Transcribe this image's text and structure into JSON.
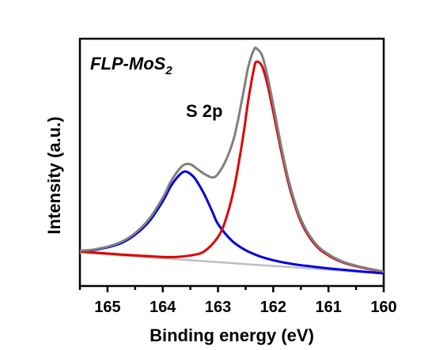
{
  "chart_data": {
    "type": "line",
    "xlabel": "Binding energy (eV)",
    "ylabel": "Intensity (a.u.)",
    "xlim": [
      165.5,
      160
    ],
    "x_reversed": true,
    "y_ticks_shown": false,
    "grid": false,
    "x_ticks": [
      165,
      164,
      163,
      162,
      161,
      160
    ],
    "annotations": {
      "sample": {
        "main": "FLP-MoS",
        "sub": "2"
      },
      "peak_label": "S 2p"
    },
    "series": [
      {
        "color": "#c0c0c0",
        "x": [
          165.5,
          165,
          164.5,
          164,
          163.5,
          163,
          162.5,
          162,
          161.5,
          161,
          160.5,
          160
        ],
        "y": [
          0.14,
          0.132,
          0.124,
          0.116,
          0.108,
          0.1,
          0.092,
          0.084,
          0.076,
          0.068,
          0.06,
          0.052
        ]
      },
      {
        "color": "#0000e0",
        "x": [
          165.5,
          165.25,
          165,
          164.75,
          164.5,
          164.25,
          164,
          163.85,
          163.7,
          163.6,
          163.5,
          163.4,
          163.25,
          163.1,
          163,
          162.75,
          162.5,
          162.25,
          162,
          161.75,
          161.5,
          161,
          160.5,
          160
        ],
        "y": [
          0.146,
          0.151,
          0.162,
          0.18,
          0.215,
          0.27,
          0.355,
          0.42,
          0.465,
          0.48,
          0.47,
          0.445,
          0.385,
          0.31,
          0.26,
          0.19,
          0.15,
          0.125,
          0.108,
          0.096,
          0.087,
          0.074,
          0.063,
          0.053
        ]
      },
      {
        "color": "#e00000",
        "x": [
          165.5,
          165,
          164.5,
          164,
          163.75,
          163.5,
          163.25,
          163,
          162.85,
          162.7,
          162.55,
          162.45,
          162.35,
          162.3,
          162.2,
          162.1,
          162,
          161.85,
          161.7,
          161.5,
          161.25,
          161,
          160.75,
          160.5,
          160.25,
          160
        ],
        "y": [
          0.145,
          0.136,
          0.128,
          0.122,
          0.122,
          0.128,
          0.145,
          0.205,
          0.285,
          0.42,
          0.62,
          0.78,
          0.91,
          0.94,
          0.92,
          0.84,
          0.73,
          0.56,
          0.41,
          0.27,
          0.175,
          0.128,
          0.1,
          0.083,
          0.07,
          0.06
        ]
      },
      {
        "color": "#808080",
        "x": [
          165.5,
          165.25,
          165,
          164.75,
          164.5,
          164.25,
          164,
          163.85,
          163.7,
          163.6,
          163.5,
          163.4,
          163.25,
          163.1,
          163,
          162.85,
          162.7,
          162.55,
          162.45,
          162.35,
          162.3,
          162.2,
          162.1,
          162,
          161.85,
          161.7,
          161.5,
          161.25,
          161,
          160.75,
          160.5,
          160.25,
          160
        ],
        "y": [
          0.148,
          0.153,
          0.165,
          0.185,
          0.222,
          0.28,
          0.37,
          0.44,
          0.49,
          0.51,
          0.51,
          0.495,
          0.47,
          0.455,
          0.47,
          0.53,
          0.63,
          0.8,
          0.92,
          0.99,
          0.995,
          0.965,
          0.875,
          0.76,
          0.58,
          0.425,
          0.28,
          0.182,
          0.133,
          0.103,
          0.085,
          0.072,
          0.061
        ]
      }
    ]
  }
}
